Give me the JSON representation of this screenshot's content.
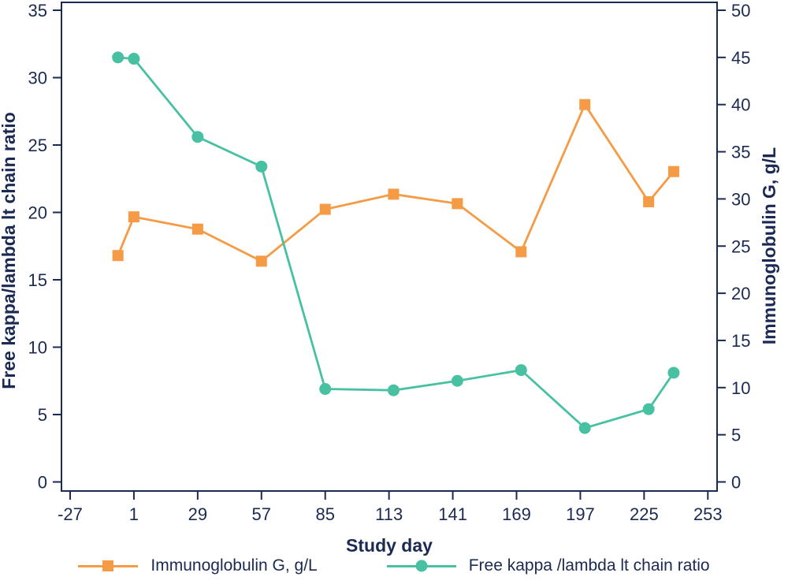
{
  "colors": {
    "background": "#ffffff",
    "text": "#1b2a52",
    "axis": "#1b2a52",
    "igg_orange": "#f59b45",
    "ratio_teal": "#48c0a2"
  },
  "chart_data": {
    "type": "line",
    "title": "",
    "xlabel": "Study day",
    "x": [
      -6,
      1,
      29,
      57,
      85,
      115,
      143,
      171,
      199,
      227,
      238
    ],
    "x_ticks": [
      -27,
      1,
      29,
      57,
      85,
      113,
      141,
      169,
      197,
      225,
      253
    ],
    "x_range": [
      -31,
      257
    ],
    "left_axis": {
      "label": "Free kappa/lambda lt chain ratio",
      "ticks": [
        0,
        5,
        10,
        15,
        20,
        25,
        30,
        35
      ],
      "range": [
        0,
        35
      ]
    },
    "right_axis": {
      "label": "Immunoglobulin G, g/L",
      "ticks": [
        0,
        5,
        10,
        15,
        20,
        25,
        30,
        35,
        40,
        45,
        50
      ],
      "range": [
        0,
        50
      ]
    },
    "grid": false,
    "legend_position": "bottom",
    "series": [
      {
        "name": "Immunoglobulin G, g/L",
        "axis": "right",
        "color": "#f59b45",
        "marker": "square",
        "values": [
          24.0,
          28.1,
          26.8,
          23.4,
          28.9,
          30.5,
          29.5,
          24.4,
          40.0,
          29.7,
          32.9
        ]
      },
      {
        "name": "Free kappa /lambda lt chain ratio",
        "axis": "left",
        "color": "#48c0a2",
        "marker": "circle",
        "values": [
          31.5,
          31.4,
          25.6,
          23.4,
          6.9,
          6.8,
          7.5,
          8.3,
          4.0,
          5.4,
          8.1
        ]
      }
    ]
  }
}
